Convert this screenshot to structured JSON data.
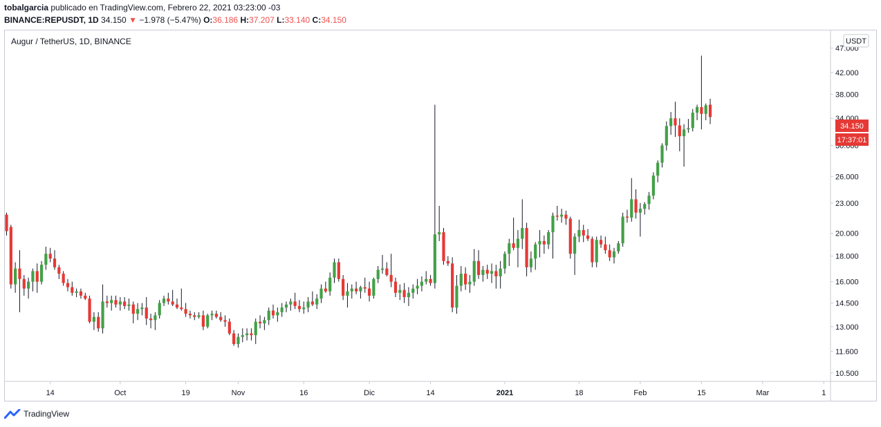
{
  "header": {
    "author": "tobalgarcia",
    "published_text": "publicado en TradingView.com, Febrero 22, 2021 03:23:00 -03",
    "symbol": "BINANCE:REPUSDT, 1D",
    "last": "34.150",
    "change_arrow": "▼",
    "change": "−1.978 (−5.47%)",
    "o_label": "O:",
    "o_value": "36.186",
    "h_label": "H:",
    "h_value": "37.207",
    "l_label": "L:",
    "l_value": "33.140",
    "c_label": "C:",
    "c_value": "34.150"
  },
  "chart_title": "Augur / TetherUS, 1D, BINANCE",
  "currency_badge": "USDT",
  "price_badge": "34.150",
  "timer_badge": "17:37:01",
  "brand": "TradingView",
  "colors": {
    "up": "#43a047",
    "down": "#e53935",
    "badge": "#e53935",
    "frame": "#c8cbd2"
  },
  "chart_data": {
    "type": "candlestick",
    "scale": "log",
    "ylim": [
      10.1,
      51.0
    ],
    "y_ticks": [
      "47.000",
      "42.000",
      "38.000",
      "34.000",
      "30.000",
      "26.000",
      "23.000",
      "20.000",
      "18.000",
      "16.000",
      "14.500",
      "13.000",
      "11.600",
      "10.500"
    ],
    "x_ticks": [
      {
        "label": "14",
        "index": 10,
        "bold": false
      },
      {
        "label": "Oct",
        "index": 26,
        "bold": false
      },
      {
        "label": "19",
        "index": 41,
        "bold": false
      },
      {
        "label": "Nov",
        "index": 53,
        "bold": false
      },
      {
        "label": "16",
        "index": 68,
        "bold": false
      },
      {
        "label": "Dic",
        "index": 83,
        "bold": false
      },
      {
        "label": "14",
        "index": 97,
        "bold": false
      },
      {
        "label": "2021",
        "index": 114,
        "bold": true
      },
      {
        "label": "18",
        "index": 131,
        "bold": false
      },
      {
        "label": "Feb",
        "index": 145,
        "bold": false
      },
      {
        "label": "15",
        "index": 159,
        "bold": false
      },
      {
        "label": "Mar",
        "index": 173,
        "bold": false
      },
      {
        "label": "1",
        "index": 187,
        "bold": false
      }
    ],
    "ohlc": [
      [
        21.8,
        22.0,
        19.8,
        20.2
      ],
      [
        20.6,
        20.8,
        15.5,
        15.8
      ],
      [
        15.8,
        17.5,
        15.2,
        17.0
      ],
      [
        17.0,
        18.5,
        13.9,
        16.2
      ],
      [
        16.2,
        16.5,
        15.0,
        15.5
      ],
      [
        15.5,
        16.3,
        14.8,
        16.0
      ],
      [
        16.0,
        17.0,
        15.3,
        16.8
      ],
      [
        16.8,
        17.4,
        15.2,
        16.0
      ],
      [
        16.0,
        17.6,
        15.8,
        17.3
      ],
      [
        17.3,
        18.8,
        16.9,
        18.2
      ],
      [
        18.2,
        18.7,
        17.5,
        17.8
      ],
      [
        17.8,
        18.5,
        16.9,
        17.1
      ],
      [
        17.1,
        17.3,
        16.2,
        16.6
      ],
      [
        16.6,
        16.8,
        15.7,
        15.9
      ],
      [
        15.9,
        16.2,
        15.3,
        15.6
      ],
      [
        15.6,
        16.0,
        15.0,
        15.2
      ],
      [
        15.2,
        15.5,
        14.9,
        15.3
      ],
      [
        15.3,
        15.5,
        14.8,
        15.0
      ],
      [
        15.0,
        15.2,
        14.7,
        14.8
      ],
      [
        14.8,
        15.0,
        13.2,
        13.3
      ],
      [
        13.3,
        13.9,
        12.8,
        13.6
      ],
      [
        13.6,
        13.9,
        12.7,
        12.9
      ],
      [
        12.9,
        15.8,
        12.6,
        14.6
      ],
      [
        14.6,
        15.0,
        14.2,
        14.5
      ],
      [
        14.5,
        15.0,
        14.0,
        14.7
      ],
      [
        14.7,
        15.0,
        14.2,
        14.4
      ],
      [
        14.4,
        14.9,
        14.0,
        14.6
      ],
      [
        14.6,
        14.9,
        14.1,
        14.3
      ],
      [
        14.3,
        14.8,
        14.0,
        14.4
      ],
      [
        14.4,
        14.6,
        13.2,
        13.8
      ],
      [
        13.8,
        14.5,
        13.4,
        14.1
      ],
      [
        14.1,
        14.5,
        13.7,
        14.2
      ],
      [
        14.2,
        14.9,
        13.1,
        13.5
      ],
      [
        13.5,
        13.8,
        12.9,
        13.4
      ],
      [
        13.4,
        13.9,
        12.8,
        13.7
      ],
      [
        13.7,
        14.7,
        13.5,
        14.5
      ],
      [
        14.5,
        15.0,
        14.3,
        14.8
      ],
      [
        14.8,
        15.2,
        14.4,
        14.6
      ],
      [
        14.6,
        15.4,
        14.3,
        14.4
      ],
      [
        14.4,
        14.8,
        14.1,
        14.2
      ],
      [
        14.2,
        15.5,
        14.0,
        14.1
      ],
      [
        14.1,
        14.5,
        13.6,
        13.8
      ],
      [
        13.8,
        14.0,
        13.5,
        13.7
      ],
      [
        13.7,
        13.9,
        13.4,
        13.6
      ],
      [
        13.6,
        13.9,
        13.5,
        13.7
      ],
      [
        13.7,
        14.0,
        12.8,
        13.0
      ],
      [
        13.0,
        13.8,
        12.9,
        13.7
      ],
      [
        13.7,
        14.0,
        13.4,
        13.8
      ],
      [
        13.8,
        14.0,
        13.5,
        13.6
      ],
      [
        13.6,
        13.9,
        13.3,
        13.4
      ],
      [
        13.4,
        13.7,
        13.0,
        13.3
      ],
      [
        13.3,
        13.5,
        12.5,
        12.6
      ],
      [
        12.6,
        12.8,
        11.9,
        12.0
      ],
      [
        12.0,
        12.6,
        11.8,
        12.4
      ],
      [
        12.4,
        12.9,
        12.1,
        12.5
      ],
      [
        12.5,
        12.9,
        12.2,
        12.6
      ],
      [
        12.6,
        12.9,
        12.2,
        12.5
      ],
      [
        12.5,
        13.5,
        12.0,
        13.3
      ],
      [
        13.3,
        13.7,
        12.9,
        13.2
      ],
      [
        13.2,
        13.6,
        12.8,
        13.4
      ],
      [
        13.4,
        14.2,
        13.1,
        14.0
      ],
      [
        14.0,
        14.4,
        13.5,
        13.7
      ],
      [
        13.7,
        14.2,
        13.3,
        13.9
      ],
      [
        13.9,
        14.5,
        13.6,
        14.2
      ],
      [
        14.2,
        14.6,
        13.9,
        14.4
      ],
      [
        14.4,
        14.8,
        14.0,
        14.6
      ],
      [
        14.6,
        15.2,
        14.1,
        14.3
      ],
      [
        14.3,
        14.7,
        13.9,
        14.1
      ],
      [
        14.1,
        14.6,
        13.8,
        14.2
      ],
      [
        14.2,
        14.9,
        13.9,
        14.6
      ],
      [
        14.6,
        15.3,
        14.3,
        14.4
      ],
      [
        14.4,
        15.1,
        14.1,
        14.8
      ],
      [
        14.8,
        15.8,
        14.5,
        15.5
      ],
      [
        15.5,
        16.0,
        15.2,
        15.3
      ],
      [
        15.3,
        16.7,
        15.0,
        16.3
      ],
      [
        16.3,
        17.8,
        15.9,
        17.5
      ],
      [
        17.5,
        17.8,
        16.0,
        16.2
      ],
      [
        16.2,
        16.5,
        14.7,
        15.0
      ],
      [
        15.0,
        15.9,
        14.2,
        15.3
      ],
      [
        15.3,
        15.8,
        14.8,
        15.5
      ],
      [
        15.5,
        16.0,
        15.1,
        15.3
      ],
      [
        15.3,
        15.7,
        14.8,
        15.6
      ],
      [
        15.6,
        16.3,
        15.2,
        15.5
      ],
      [
        15.5,
        16.0,
        14.6,
        15.0
      ],
      [
        15.0,
        16.3,
        14.8,
        16.2
      ],
      [
        16.2,
        17.2,
        15.9,
        16.9
      ],
      [
        16.9,
        18.1,
        16.6,
        17.0
      ],
      [
        17.0,
        17.5,
        16.4,
        16.5
      ],
      [
        16.5,
        18.2,
        15.6,
        16.0
      ],
      [
        16.0,
        16.3,
        14.9,
        15.2
      ],
      [
        15.2,
        15.8,
        14.7,
        15.4
      ],
      [
        15.4,
        15.9,
        14.5,
        14.9
      ],
      [
        14.9,
        15.6,
        14.3,
        15.2
      ],
      [
        15.2,
        15.8,
        14.8,
        15.5
      ],
      [
        15.5,
        16.2,
        15.1,
        15.7
      ],
      [
        15.7,
        16.4,
        15.3,
        16.0
      ],
      [
        16.0,
        16.8,
        15.8,
        16.2
      ],
      [
        16.2,
        16.5,
        15.7,
        15.9
      ],
      [
        15.9,
        36.2,
        15.5,
        19.9
      ],
      [
        19.9,
        22.7,
        19.3,
        20.1
      ],
      [
        20.1,
        20.5,
        17.3,
        17.6
      ],
      [
        17.6,
        18.0,
        17.2,
        17.4
      ],
      [
        17.4,
        17.9,
        13.9,
        14.2
      ],
      [
        14.2,
        16.5,
        13.8,
        15.7
      ],
      [
        15.7,
        17.2,
        15.3,
        16.6
      ],
      [
        16.6,
        17.1,
        15.4,
        15.8
      ],
      [
        15.8,
        16.5,
        15.2,
        16.0
      ],
      [
        16.0,
        18.6,
        15.7,
        17.6
      ],
      [
        17.6,
        18.5,
        16.2,
        16.5
      ],
      [
        16.5,
        17.2,
        16.0,
        16.9
      ],
      [
        16.9,
        17.3,
        16.2,
        16.6
      ],
      [
        16.6,
        17.4,
        15.9,
        16.8
      ],
      [
        16.8,
        17.3,
        15.5,
        16.4
      ],
      [
        16.4,
        17.6,
        15.5,
        17.0
      ],
      [
        17.0,
        18.4,
        16.6,
        18.2
      ],
      [
        18.2,
        19.5,
        17.2,
        19.1
      ],
      [
        19.1,
        21.5,
        18.5,
        18.7
      ],
      [
        18.7,
        20.3,
        17.1,
        19.5
      ],
      [
        19.5,
        23.4,
        18.6,
        20.5
      ],
      [
        20.5,
        21.0,
        16.4,
        17.1
      ],
      [
        17.1,
        18.4,
        16.7,
        17.8
      ],
      [
        17.8,
        19.2,
        16.9,
        19.0
      ],
      [
        19.0,
        20.3,
        17.9,
        19.3
      ],
      [
        19.3,
        19.8,
        18.2,
        19.0
      ],
      [
        19.0,
        20.3,
        18.6,
        20.1
      ],
      [
        20.1,
        22.0,
        17.8,
        21.7
      ],
      [
        21.7,
        22.7,
        21.2,
        21.6
      ],
      [
        21.6,
        22.4,
        21.0,
        21.8
      ],
      [
        21.8,
        22.2,
        20.8,
        21.4
      ],
      [
        21.4,
        21.6,
        17.8,
        18.2
      ],
      [
        18.2,
        20.0,
        16.5,
        19.7
      ],
      [
        19.7,
        21.3,
        19.2,
        20.3
      ],
      [
        20.3,
        20.8,
        19.2,
        19.8
      ],
      [
        19.8,
        20.4,
        19.3,
        19.5
      ],
      [
        19.5,
        19.7,
        17.1,
        17.5
      ],
      [
        17.5,
        19.7,
        17.1,
        19.4
      ],
      [
        19.4,
        19.8,
        18.7,
        19.0
      ],
      [
        19.0,
        19.7,
        18.2,
        18.5
      ],
      [
        18.5,
        19.0,
        17.6,
        17.9
      ],
      [
        17.9,
        18.7,
        17.4,
        18.4
      ],
      [
        18.4,
        19.3,
        18.2,
        19.1
      ],
      [
        19.1,
        22.0,
        18.8,
        21.6
      ],
      [
        21.6,
        22.3,
        21.0,
        21.5
      ],
      [
        21.5,
        25.8,
        21.1,
        23.4
      ],
      [
        23.4,
        24.5,
        21.4,
        22.0
      ],
      [
        22.0,
        23.0,
        19.7,
        22.4
      ],
      [
        22.4,
        23.1,
        21.8,
        22.9
      ],
      [
        22.9,
        24.2,
        22.3,
        23.8
      ],
      [
        23.8,
        26.5,
        23.4,
        26.1
      ],
      [
        26.1,
        28.0,
        25.3,
        27.7
      ],
      [
        27.7,
        30.3,
        27.1,
        30.0
      ],
      [
        30.0,
        33.5,
        29.3,
        32.8
      ],
      [
        32.8,
        35.0,
        31.5,
        34.0
      ],
      [
        34.0,
        36.7,
        31.2,
        32.9
      ],
      [
        32.9,
        34.0,
        29.2,
        31.3
      ],
      [
        31.3,
        33.1,
        27.2,
        32.3
      ],
      [
        32.3,
        33.9,
        31.8,
        32.5
      ],
      [
        32.5,
        35.5,
        32.0,
        34.9
      ],
      [
        34.9,
        36.2,
        33.7,
        35.8
      ],
      [
        35.8,
        45.4,
        32.3,
        34.7
      ],
      [
        34.7,
        36.4,
        33.7,
        36.1
      ],
      [
        36.2,
        37.2,
        33.1,
        34.2
      ]
    ]
  }
}
